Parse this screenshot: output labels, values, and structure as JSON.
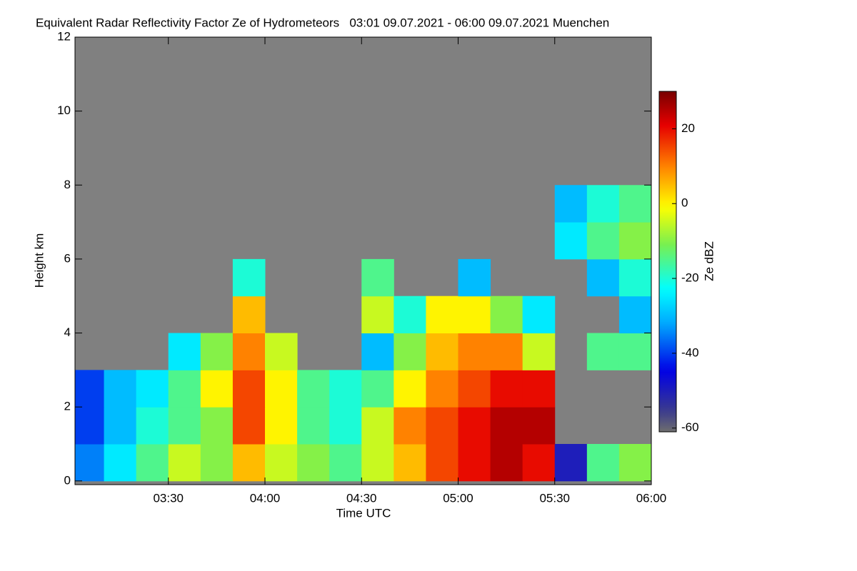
{
  "chart_data": {
    "type": "heatmap",
    "title": "Equivalent Radar Reflectivity Factor Ze of Hydrometeors   03:01 09.07.2021 - 06:00 09.07.2021 Muenchen",
    "x_label": "Time UTC",
    "y_label": "Height km",
    "colorbar_label": "Ze dBZ",
    "xlim": [
      181,
      360
    ],
    "xticks": [
      {
        "value": 210,
        "label": "03:30"
      },
      {
        "value": 240,
        "label": "04:00"
      },
      {
        "value": 270,
        "label": "04:30"
      },
      {
        "value": 300,
        "label": "05:00"
      },
      {
        "value": 330,
        "label": "05:30"
      },
      {
        "value": 360,
        "label": "06:00"
      }
    ],
    "ylim": [
      -0.1,
      12
    ],
    "yticks": [
      0,
      2,
      4,
      6,
      8,
      10,
      12
    ],
    "clim": [
      -61,
      30
    ],
    "cticks": [
      -60,
      -40,
      -20,
      0,
      20
    ],
    "background_color": "#808080",
    "x_edges": [
      181,
      190,
      200,
      210,
      220,
      230,
      240,
      250,
      260,
      270,
      280,
      290,
      300,
      310,
      320,
      330,
      340,
      350,
      360
    ],
    "y_edges": [
      0,
      1,
      2,
      3,
      4,
      5,
      6,
      7,
      8
    ],
    "z": [
      [
        -35,
        -25,
        -15,
        -5,
        -10,
        5,
        -5,
        -10,
        -15,
        -5,
        5,
        15,
        20,
        25,
        20,
        -50,
        -15,
        -10
      ],
      [
        -40,
        -30,
        -20,
        -15,
        -10,
        15,
        0,
        -15,
        -20,
        -5,
        10,
        15,
        20,
        25,
        25,
        null,
        null,
        null
      ],
      [
        -40,
        -30,
        -25,
        -15,
        0,
        15,
        0,
        -15,
        -20,
        -15,
        0,
        10,
        15,
        20,
        20,
        null,
        null,
        null
      ],
      [
        null,
        null,
        null,
        -25,
        -10,
        10,
        -5,
        null,
        null,
        -30,
        -10,
        5,
        10,
        10,
        -5,
        null,
        -15,
        -15
      ],
      [
        null,
        null,
        null,
        null,
        null,
        5,
        null,
        null,
        null,
        -5,
        -20,
        0,
        0,
        -10,
        -25,
        null,
        null,
        -30
      ],
      [
        null,
        null,
        null,
        null,
        null,
        -20,
        null,
        null,
        null,
        -15,
        null,
        null,
        -30,
        null,
        null,
        null,
        -30,
        -20
      ],
      [
        null,
        null,
        null,
        null,
        null,
        null,
        null,
        null,
        null,
        null,
        null,
        null,
        null,
        null,
        null,
        -25,
        -15,
        -10
      ],
      [
        null,
        null,
        null,
        null,
        null,
        null,
        null,
        null,
        null,
        null,
        null,
        null,
        null,
        null,
        null,
        -30,
        -20,
        -15
      ]
    ]
  }
}
